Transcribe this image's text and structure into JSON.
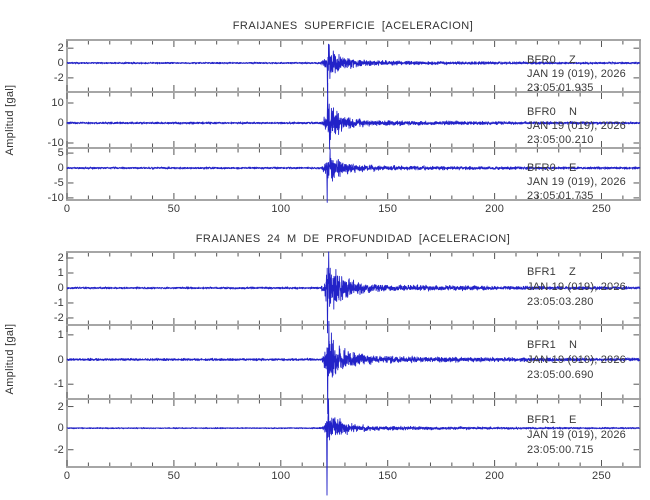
{
  "chart_data": {
    "type": "line",
    "subtype": "seismogram",
    "colors": {
      "trace": "#2222c8",
      "frame": "#9a9a9a",
      "tick": "#555555",
      "text": "#3a3a3a"
    },
    "xlim": [
      0,
      268
    ],
    "xticks": [
      0,
      50,
      100,
      150,
      200,
      250
    ],
    "xminor_step": 10,
    "grid": "off",
    "legend": "none",
    "panels": [
      {
        "title": "FRAIJANES SUPERFICIE [ACELERACION]",
        "ylabel": "Amplitud [gal]",
        "traces": [
          {
            "station": "BFR0",
            "component": "Z",
            "date": "JAN 19 (019), 2026",
            "time": "23:05:01.935",
            "yticks": [
              2,
              0,
              -2
            ],
            "noise_level": 0.12,
            "burst_start": 118,
            "burst_peak": 2.0,
            "spikes": [
              {
                "t": 121.8,
                "v": -4.0
              },
              {
                "t": 122.6,
                "v": 2.45
              }
            ]
          },
          {
            "station": "BFR0",
            "component": "N",
            "date": "JAN 19 (019), 2026",
            "time": "23:05:00.210",
            "yticks": [
              10,
              0,
              -10
            ],
            "noise_level": 0.55,
            "burst_start": 118,
            "burst_peak": 8.5,
            "spikes": [
              {
                "t": 121.9,
                "v": 20.0
              },
              {
                "t": 122.8,
                "v": -13.0
              }
            ]
          },
          {
            "station": "BFR0",
            "component": "E",
            "date": "JAN 19 (019), 2026",
            "time": "23:05:01.735",
            "yticks": [
              5,
              0,
              -5,
              -10
            ],
            "noise_level": 0.35,
            "burst_start": 118,
            "burst_peak": 5.0,
            "spikes": [
              {
                "t": 121.7,
                "v": -11.5
              },
              {
                "t": 123.0,
                "v": 6.3
              }
            ]
          }
        ]
      },
      {
        "title": "FRAIJANES 24 M DE PROFUNDIDAD [ACELERACION]",
        "ylabel": "Amplitud [gal]",
        "traces": [
          {
            "station": "BFR1",
            "component": "Z",
            "date": "JAN 19 (019), 2026",
            "time": "23:05:03.280",
            "yticks": [
              2,
              1,
              0,
              -1,
              -2
            ],
            "noise_level": 0.07,
            "burst_start": 118,
            "burst_peak": 1.9,
            "spikes": [
              {
                "t": 121.8,
                "v": -3.0
              },
              {
                "t": 122.4,
                "v": 2.4
              }
            ]
          },
          {
            "station": "BFR1",
            "component": "N",
            "date": "JAN 19 (019), 2026",
            "time": "23:05:00.690",
            "yticks": [
              1,
              0,
              -1
            ],
            "noise_level": 0.05,
            "burst_start": 118,
            "burst_peak": 1.05,
            "spikes": [
              {
                "t": 121.9,
                "v": -2.2
              },
              {
                "t": 122.5,
                "v": 1.55
              }
            ]
          },
          {
            "station": "BFR1",
            "component": "E",
            "date": "JAN 19 (019), 2026",
            "time": "23:05:00.715",
            "yticks": [
              2,
              0,
              -2
            ],
            "noise_level": 0.06,
            "burst_start": 118,
            "burst_peak": 1.5,
            "spikes": [
              {
                "t": 121.6,
                "v": -6.2
              },
              {
                "t": 122.3,
                "v": 2.7
              }
            ]
          }
        ]
      }
    ]
  }
}
